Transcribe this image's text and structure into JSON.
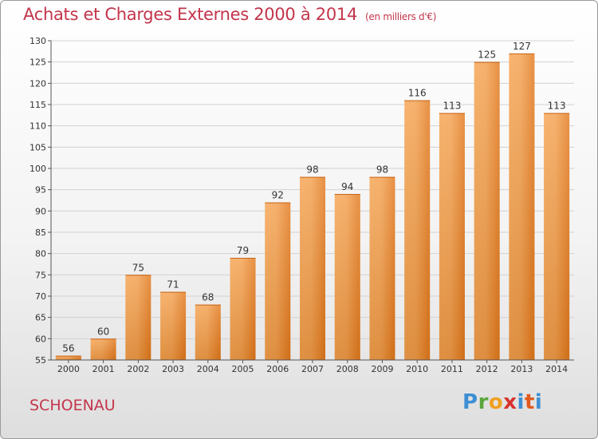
{
  "header": {
    "title": "Achats et Charges Externes 2000 à 2014",
    "unit": "(en milliers d'€)"
  },
  "footer": {
    "commune": "SCHOENAU",
    "logo_text": "Proxiti"
  },
  "colors": {
    "title": "#c3354b",
    "bar_light": "#f7a95c",
    "bar_dark": "#e47a1e",
    "grid": "#cccccc",
    "axis": "#555555"
  },
  "chart_data": {
    "type": "bar",
    "title": "Achats et Charges Externes 2000 à 2014",
    "subtitle": "(en milliers d'€)",
    "categories": [
      "2000",
      "2001",
      "2002",
      "2003",
      "2004",
      "2005",
      "2006",
      "2007",
      "2008",
      "2009",
      "2010",
      "2011",
      "2012",
      "2013",
      "2014"
    ],
    "values": [
      56,
      60,
      75,
      71,
      68,
      79,
      92,
      98,
      94,
      98,
      116,
      113,
      125,
      127,
      113
    ],
    "ylim": [
      55,
      130
    ],
    "yticks": [
      55,
      60,
      65,
      70,
      75,
      80,
      85,
      90,
      95,
      100,
      105,
      110,
      115,
      120,
      125,
      130
    ],
    "grid": true,
    "legend": "none"
  }
}
